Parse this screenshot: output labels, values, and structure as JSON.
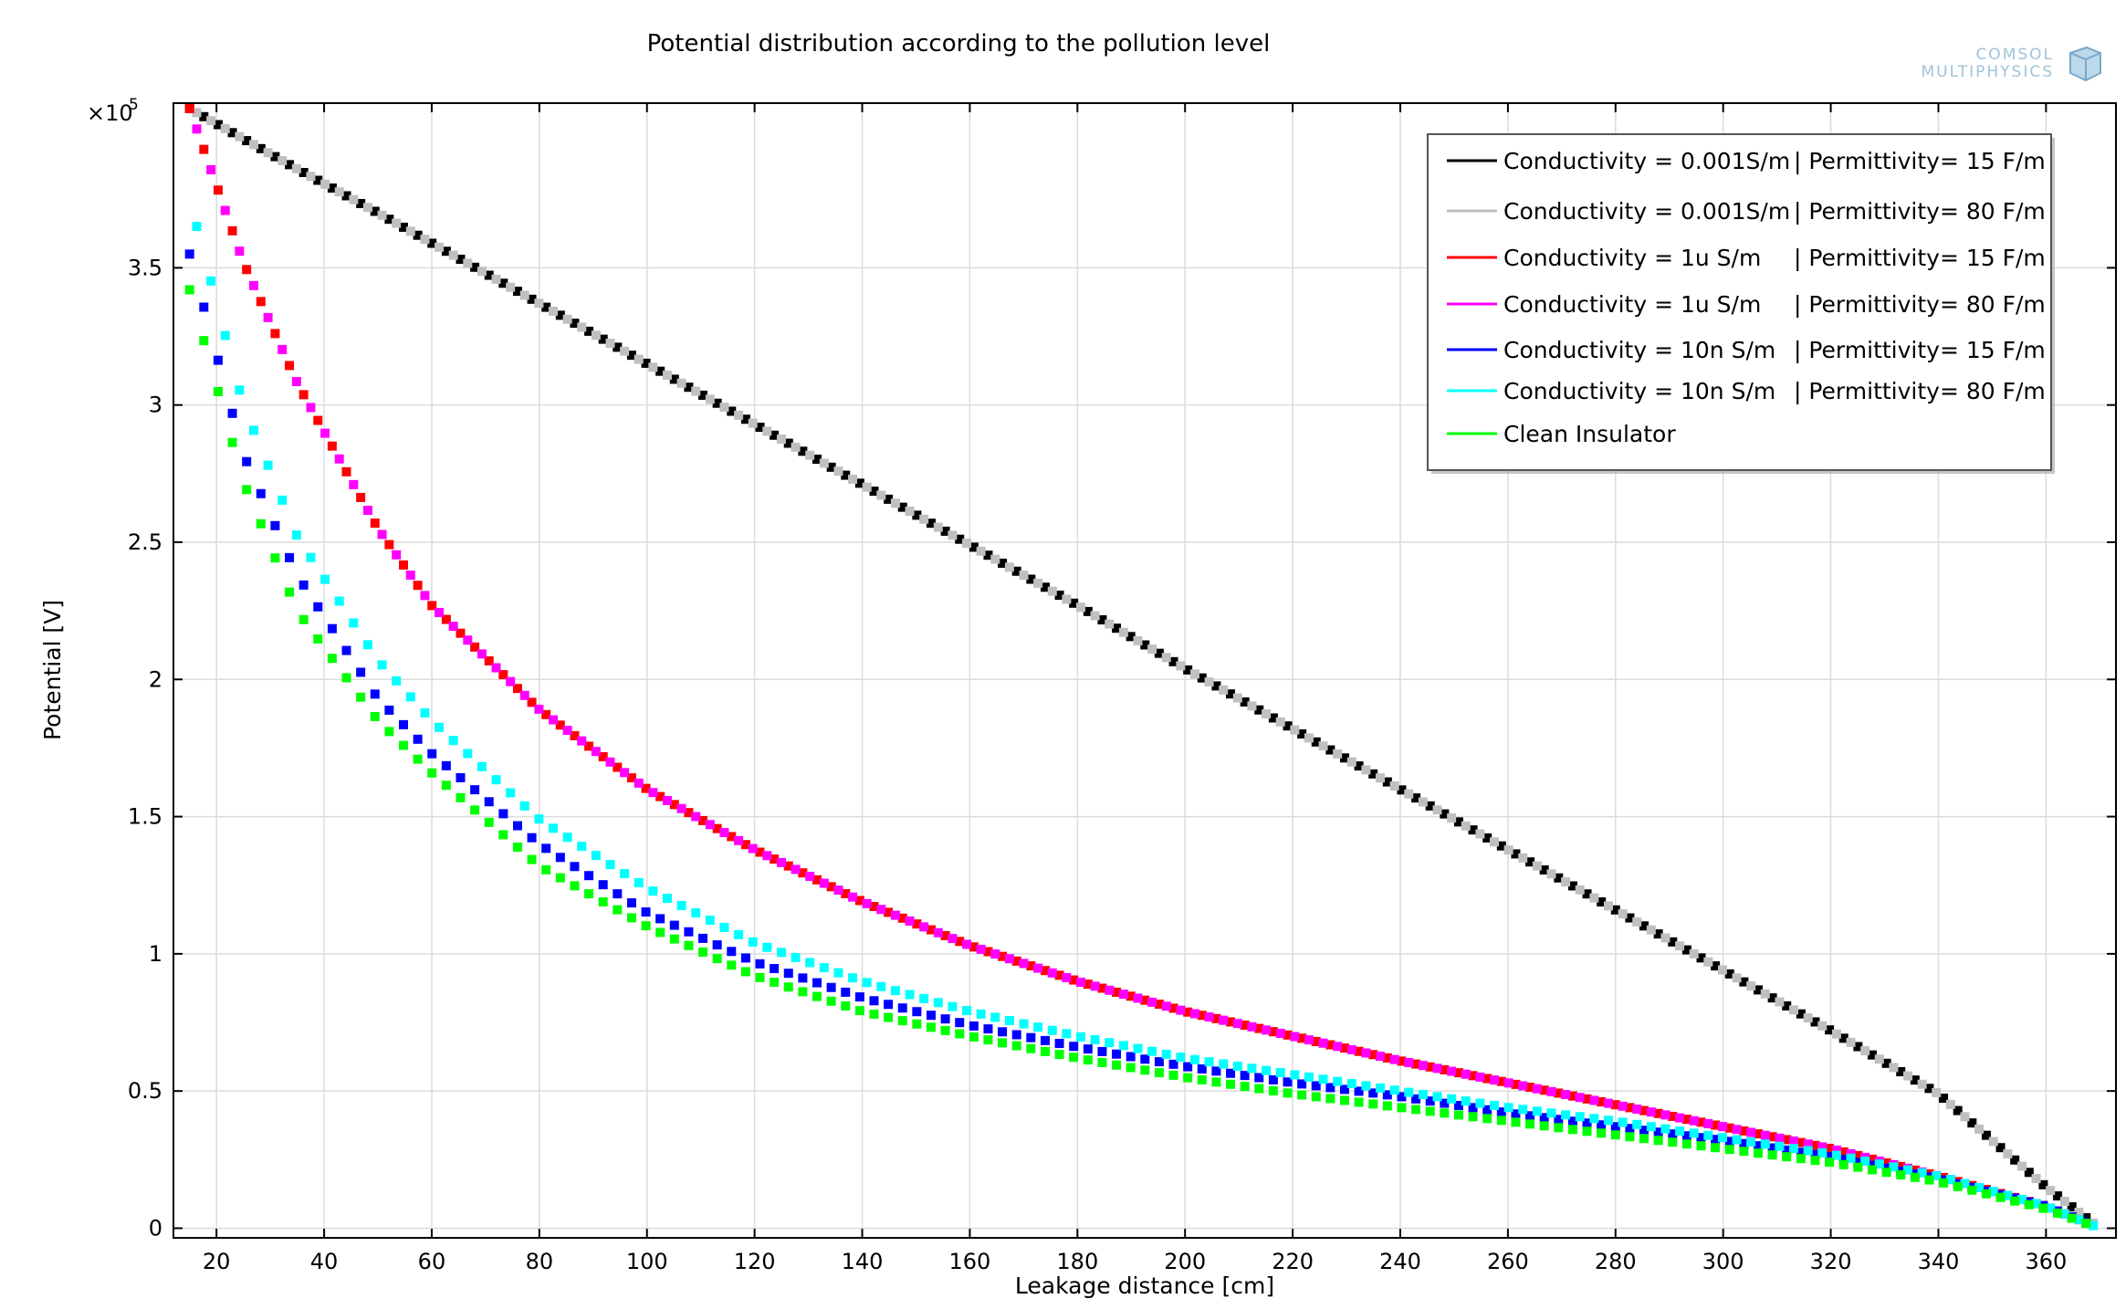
{
  "chart_data": {
    "type": "scatter",
    "title": "Potential distribution according to the pollution level",
    "xlabel": "Leakage distance [cm]",
    "ylabel": "Potential [V]",
    "y_multiplier_label": "×10",
    "y_multiplier_exponent": "5",
    "xlim": [
      12,
      373
    ],
    "ylim": [
      -0.035,
      4.1
    ],
    "x_ticks": [
      20,
      40,
      60,
      80,
      100,
      120,
      140,
      160,
      180,
      200,
      220,
      240,
      260,
      280,
      300,
      320,
      340,
      360
    ],
    "x_tick_labels": [
      "20",
      "40",
      "60",
      "80",
      "100",
      "120",
      "140",
      "160",
      "180",
      "200",
      "220",
      "240",
      "260",
      "280",
      "300",
      "320",
      "340",
      "360"
    ],
    "y_ticks": [
      0,
      0.5,
      1,
      1.5,
      2,
      2.5,
      3,
      3.5
    ],
    "y_tick_labels": [
      "0",
      "0.5",
      "1",
      "1.5",
      "2",
      "2.5",
      "3",
      "3.5"
    ],
    "grid": true,
    "legend_position": "top-right",
    "legend": [
      {
        "label_a": "Conductivity = 0.001S/m",
        "label_b": "| Permittivity= 15 F/m",
        "color": "#000000"
      },
      {
        "label_a": "Conductivity = 0.001S/m",
        "label_b": "| Permittivity= 80 F/m",
        "color": "#c0c0c0"
      },
      {
        "label_a": "Conductivity = 1u S/m",
        "label_b": "| Permittivity= 15 F/m",
        "color": "#ff0000"
      },
      {
        "label_a": "Conductivity = 1u S/m",
        "label_b": "| Permittivity= 80 F/m",
        "color": "#ff00ff"
      },
      {
        "label_a": "Conductivity = 10n S/m",
        "label_b": "| Permittivity= 15 F/m",
        "color": "#0000ff"
      },
      {
        "label_a": "Conductivity = 10n S/m",
        "label_b": "| Permittivity= 80 F/m",
        "color": "#00ffff"
      },
      {
        "label_a": "Clean Insulator",
        "label_b": "",
        "color": "#00ff00"
      }
    ],
    "x_values": [
      15,
      25,
      35,
      50,
      60,
      80,
      100,
      120,
      140,
      160,
      180,
      200,
      220,
      240,
      260,
      280,
      300,
      320,
      340,
      360,
      370
    ],
    "series": [
      {
        "color": "#000000",
        "values": [
          4.08,
          3.97,
          3.86,
          3.7,
          3.59,
          3.37,
          3.15,
          2.93,
          2.71,
          2.49,
          2.27,
          2.04,
          1.82,
          1.6,
          1.38,
          1.16,
          0.94,
          0.72,
          0.49,
          0.15,
          0.0
        ]
      },
      {
        "color": "#c0c0c0",
        "values": [
          4.08,
          3.97,
          3.86,
          3.7,
          3.59,
          3.37,
          3.15,
          2.93,
          2.71,
          2.49,
          2.27,
          2.04,
          1.82,
          1.6,
          1.38,
          1.16,
          0.94,
          0.72,
          0.49,
          0.15,
          0.0
        ]
      },
      {
        "color": "#ff0000",
        "values": [
          4.08,
          3.52,
          3.08,
          2.55,
          2.27,
          1.89,
          1.6,
          1.38,
          1.19,
          1.03,
          0.9,
          0.79,
          0.7,
          0.61,
          0.53,
          0.45,
          0.37,
          0.29,
          0.19,
          0.08,
          0.0
        ]
      },
      {
        "color": "#ff00ff",
        "values": [
          4.08,
          3.52,
          3.08,
          2.55,
          2.27,
          1.89,
          1.6,
          1.38,
          1.19,
          1.03,
          0.9,
          0.79,
          0.7,
          0.61,
          0.53,
          0.45,
          0.37,
          0.29,
          0.19,
          0.08,
          0.0
        ]
      },
      {
        "color": "#0000ff",
        "values": [
          3.55,
          2.82,
          2.38,
          1.93,
          1.73,
          1.4,
          1.15,
          0.97,
          0.84,
          0.74,
          0.66,
          0.59,
          0.53,
          0.48,
          0.42,
          0.37,
          0.32,
          0.26,
          0.18,
          0.08,
          0.0
        ]
      },
      {
        "color": "#00ffff",
        "values": [
          3.75,
          3.0,
          2.52,
          2.07,
          1.85,
          1.49,
          1.24,
          1.04,
          0.9,
          0.79,
          0.7,
          0.62,
          0.56,
          0.5,
          0.44,
          0.39,
          0.33,
          0.27,
          0.19,
          0.08,
          0.0
        ]
      },
      {
        "color": "#00ff00",
        "values": [
          3.42,
          2.72,
          2.25,
          1.85,
          1.66,
          1.32,
          1.1,
          0.92,
          0.79,
          0.7,
          0.62,
          0.55,
          0.49,
          0.44,
          0.39,
          0.34,
          0.29,
          0.24,
          0.17,
          0.07,
          0.0
        ]
      }
    ]
  },
  "watermark": {
    "line1": "COMSOL",
    "line2": "MULTIPHYSICS"
  }
}
